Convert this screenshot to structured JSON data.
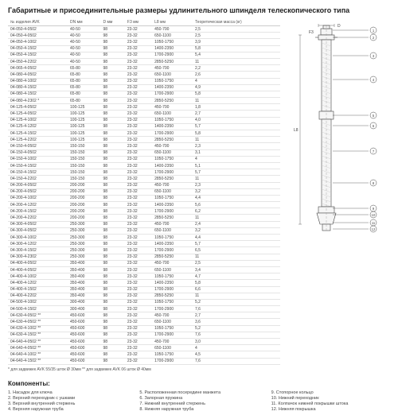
{
  "title": "Габаритные и присоединительные размеры удлинительного шпинделя телескопического типа",
  "table": {
    "headers": [
      "№ изделия AVK",
      "DN мм",
      "D мм",
      "F3 мм",
      "L8 мм",
      "Теоретическая масса (кг)"
    ],
    "rows": [
      [
        "04-050-4-0502",
        "40-50",
        "98",
        "23-32",
        "450-700",
        "2,5"
      ],
      [
        "04-050-4-0502",
        "40-50",
        "98",
        "23-32",
        "650-1100",
        "2,5"
      ],
      [
        "04-050-4-1002",
        "40-50",
        "98",
        "23-32",
        "1050-1750",
        "3,9"
      ],
      [
        "04-050-4-1502",
        "40-50",
        "98",
        "23-32",
        "1400-2350",
        "5,8"
      ],
      [
        "04-050-4-1502",
        "40-50",
        "98",
        "23-32",
        "1700-2900",
        "5,4"
      ],
      [
        "04-050-4-2202",
        "40-50",
        "98",
        "23-32",
        "2850-5250",
        "11"
      ],
      [
        "04-065-4-0502",
        "65-80",
        "98",
        "23-32",
        "450-700",
        "2,2"
      ],
      [
        "04-080-4-0502",
        "65-80",
        "98",
        "23-32",
        "650-1100",
        "2,6"
      ],
      [
        "04-080-4-1002",
        "65-80",
        "98",
        "23-32",
        "1050-1750",
        "4"
      ],
      [
        "04-080-4-1502",
        "65-80",
        "98",
        "23-32",
        "1400-2350",
        "4,9"
      ],
      [
        "04-080-4-1502",
        "65-80",
        "98",
        "23-32",
        "1700-2900",
        "5,8"
      ],
      [
        "04-080-4-2302 *",
        "65-80",
        "98",
        "23-32",
        "2850-5250",
        "11"
      ],
      [
        "04-125-4-0502",
        "100-125",
        "98",
        "23-32",
        "450-700",
        "1,8"
      ],
      [
        "04-125-4-0502",
        "100-125",
        "98",
        "23-32",
        "650-1100",
        "2,7"
      ],
      [
        "04-125-4-1002",
        "100-125",
        "98",
        "23-32",
        "1050-1750",
        "4,0"
      ],
      [
        "04-125-4-1202",
        "100-125",
        "98",
        "23-32",
        "1400-2350",
        "5,7"
      ],
      [
        "04-125-4-1502",
        "100-125",
        "98",
        "23-32",
        "1700-2900",
        "5,8"
      ],
      [
        "04-125-4-2202",
        "100-125",
        "98",
        "23-32",
        "2850-5250",
        "11"
      ],
      [
        "04-150-4-0502",
        "150-150",
        "98",
        "23-32",
        "450-700",
        "2,3"
      ],
      [
        "04-150-4-0502",
        "150-150",
        "98",
        "23-32",
        "650-1100",
        "3,1"
      ],
      [
        "04-150-4-1002",
        "150-150",
        "98",
        "23-32",
        "1050-1750",
        "4"
      ],
      [
        "04-150-4-1502",
        "150-150",
        "98",
        "23-32",
        "1400-2350",
        "5,1"
      ],
      [
        "04-150-4-1502",
        "150-150",
        "98",
        "23-32",
        "1700-2900",
        "5,7"
      ],
      [
        "04-150-4-2202",
        "150-150",
        "98",
        "23-32",
        "2850-5250",
        "11"
      ],
      [
        "04-200-4-0502",
        "200-200",
        "98",
        "23-32",
        "450-700",
        "2,3"
      ],
      [
        "04-200-4-0502",
        "200-200",
        "98",
        "23-32",
        "650-1100",
        "3,2"
      ],
      [
        "04-200-4-1002",
        "200-200",
        "98",
        "23-32",
        "1050-1750",
        "4,4"
      ],
      [
        "04-200-4-1202",
        "200-200",
        "98",
        "23-32",
        "1400-2350",
        "5,6"
      ],
      [
        "04-200-4-1502",
        "200-200",
        "98",
        "23-32",
        "1700-2900",
        "6,2"
      ],
      [
        "04-200-4-2202",
        "200-200",
        "98",
        "23-32",
        "2850-5250",
        "11"
      ],
      [
        "04-300-4-0502",
        "250-300",
        "98",
        "23-32",
        "450-700",
        "2,4"
      ],
      [
        "04-300-4-0502",
        "250-300",
        "98",
        "23-32",
        "650-1100",
        "3,2"
      ],
      [
        "04-300-4-1002",
        "250-300",
        "98",
        "23-32",
        "1050-1750",
        "4,4"
      ],
      [
        "04-300-4-1202",
        "250-300",
        "98",
        "23-32",
        "1400-2350",
        "5,7"
      ],
      [
        "04-300-4-1502",
        "250-300",
        "98",
        "23-32",
        "1700-2900",
        "6,5"
      ],
      [
        "04-300-4-2302",
        "250-300",
        "98",
        "23-32",
        "2850-5250",
        "11"
      ],
      [
        "04-400-4-0502",
        "350-400",
        "98",
        "23-32",
        "450-700",
        "2,5"
      ],
      [
        "04-400-4-0502",
        "350-400",
        "98",
        "23-32",
        "650-1100",
        "3,4"
      ],
      [
        "04-400-4-1002",
        "350-400",
        "98",
        "23-32",
        "1050-1750",
        "4,7"
      ],
      [
        "04-400-4-1202",
        "350-400",
        "98",
        "23-32",
        "1400-2350",
        "5,8"
      ],
      [
        "04-400-4-1502",
        "350-400",
        "98",
        "23-32",
        "1700-2900",
        "6,6"
      ],
      [
        "04-400-4-2202",
        "350-400",
        "98",
        "23-32",
        "2850-5250",
        "11"
      ],
      [
        "04-500-4-1002",
        "300-400",
        "98",
        "23-32",
        "1050-1750",
        "5,2"
      ],
      [
        "04-500-4-1502",
        "300-400",
        "98",
        "23-32",
        "1700-2900",
        "7,6"
      ],
      [
        "04-630-4-0502 **",
        "450-600",
        "98",
        "23-32",
        "450-700",
        "2,7"
      ],
      [
        "04-630-4-0502 **",
        "450-600",
        "98",
        "23-32",
        "650-1100",
        "3,6"
      ],
      [
        "04-630-4-1002 **",
        "450-600",
        "98",
        "23-32",
        "1050-1750",
        "5,2"
      ],
      [
        "04-630-4-1502 **",
        "450-600",
        "98",
        "23-32",
        "1700-2900",
        "7,6"
      ],
      [
        "04-640-4-0502 **",
        "450-600",
        "98",
        "23-32",
        "450-700",
        "3,0"
      ],
      [
        "04-640-4-0502 **",
        "450-600",
        "98",
        "23-32",
        "650-1100",
        "4"
      ],
      [
        "04-640-4-1002 **",
        "450-600",
        "98",
        "23-32",
        "1050-1750",
        "4,5"
      ],
      [
        "04-640-4-1502 **",
        "450-600",
        "98",
        "23-32",
        "1700-2900",
        "7,6"
      ]
    ]
  },
  "footnote": "* для задвижек AVK 55/35 шток Ø 30мм  ** для задвижек AVK 06 шток Ø 40мм",
  "components": {
    "title": "Компоненты:",
    "cols": [
      [
        "1. Насадок для ключа",
        "2. Верхний переходник с ушками",
        "3. Верхний внутренний стержень",
        "4. Верхняя наружная труба"
      ],
      [
        "5. Расположенная посередине манжета",
        "6. Запорная пружина",
        "7. Нижний внутренний стержень",
        "8. Нижняя наружная труба"
      ],
      [
        "9. Стопорное кольцо",
        "10. Нижний переходник",
        "11. Колпачок нижней покрышки штока",
        "12. Нижняя покрышка"
      ]
    ]
  },
  "diagram": {
    "label_D": "D",
    "label_F3": "F3",
    "label_L8": "L8",
    "callouts": [
      "1",
      "2",
      "3",
      "4",
      "5",
      "6",
      "7",
      "8",
      "9",
      "10",
      "11",
      "12"
    ],
    "stroke": "#444",
    "fill": "#f5f5f5"
  }
}
